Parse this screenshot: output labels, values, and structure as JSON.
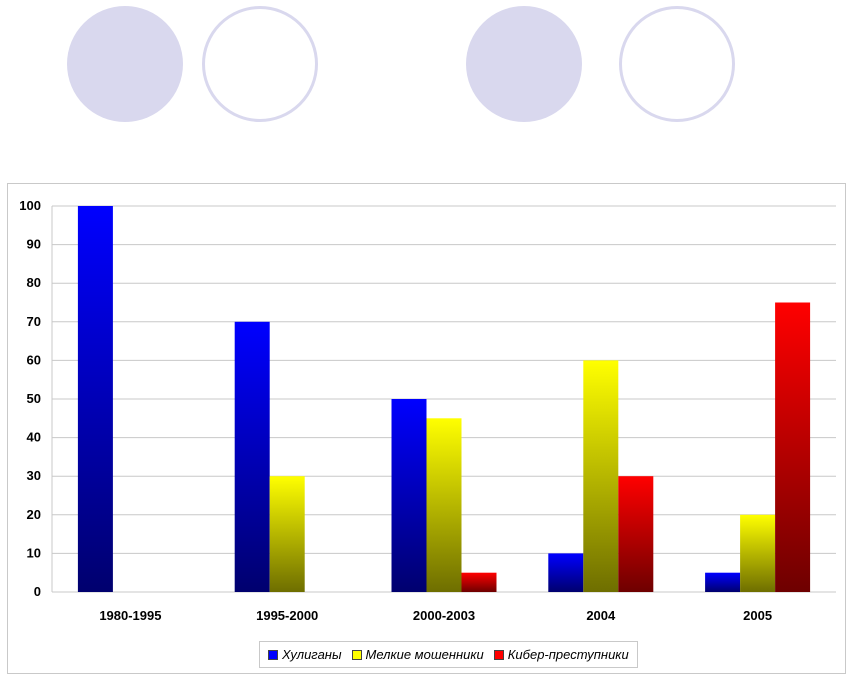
{
  "chart_data": {
    "type": "bar",
    "categories": [
      "1980-1995",
      "1995-2000",
      "2000-2003",
      "2004",
      "2005"
    ],
    "series": [
      {
        "name": "Хулиганы",
        "color": "#0000ff",
        "dark": "#00006e",
        "values": [
          100,
          70,
          50,
          10,
          5
        ]
      },
      {
        "name": "Мелкие мошенники",
        "color": "#ffff00",
        "dark": "#6e6e00",
        "values": [
          0,
          30,
          45,
          60,
          20
        ]
      },
      {
        "name": "Кибер-преступники",
        "color": "#ff0000",
        "dark": "#6e0000",
        "values": [
          0,
          0,
          5,
          30,
          75
        ]
      }
    ],
    "ylim": [
      0,
      100
    ],
    "yticks": [
      0,
      10,
      20,
      30,
      40,
      50,
      60,
      70,
      80,
      90,
      100
    ],
    "grid": true,
    "legend_position": "bottom",
    "title": "",
    "xlabel": "",
    "ylabel": ""
  },
  "legend": {
    "items": [
      {
        "label": "Хулиганы",
        "color": "#0000ff"
      },
      {
        "label": "Мелкие мошенники",
        "color": "#ffff00"
      },
      {
        "label": "Кибер-преступники",
        "color": "#ff0000"
      }
    ]
  },
  "decoration": {
    "circle_color": "#d9d8ee"
  }
}
